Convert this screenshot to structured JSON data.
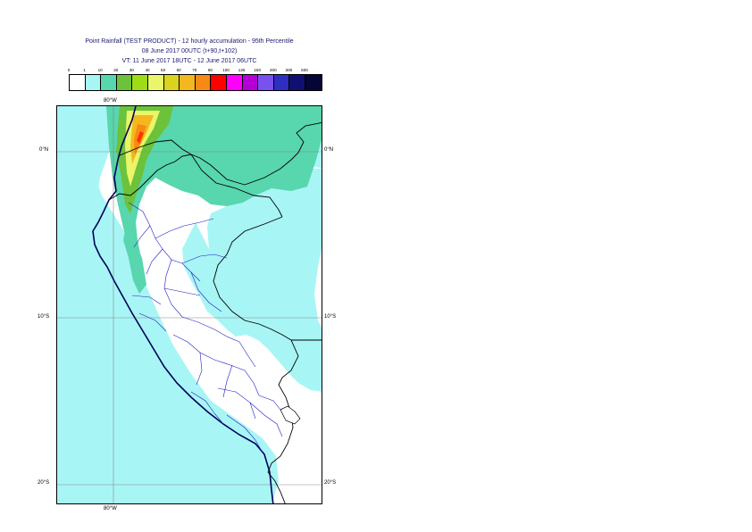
{
  "title": {
    "line1": "Point Rainfall (TEST PRODUCT) - 12 hourly accumulation - 95th Percentile",
    "line2": "08 June 2017 00UTC (t+90,t+102)",
    "line3": "VT: 11 June 2017 18UTC - 12 June 2017 06UTC"
  },
  "legend": {
    "ticks": [
      "0",
      "1",
      "10",
      "20",
      "30",
      "40",
      "50",
      "60",
      "70",
      "80",
      "100",
      "125",
      "150",
      "200",
      "300",
      "500"
    ],
    "colors": [
      "#ffffff",
      "#a8f5f5",
      "#58d6ad",
      "#6cc23a",
      "#9fdc16",
      "#e9f56a",
      "#dcd31e",
      "#f4b81e",
      "#f78a14",
      "#ff0000",
      "#ff00ff",
      "#b400d6",
      "#7a50ee",
      "#2e2ec2",
      "#101071",
      "#050536"
    ]
  },
  "map": {
    "region": "Peru",
    "latitude_labels": [
      "0°N",
      "10°S",
      "20°S"
    ],
    "longitude_labels": [
      "80°W"
    ],
    "colors": {
      "ocean_shade": "#a8f5f5",
      "heavier_shade": "#58d6ad",
      "coast": "#00005a",
      "borders": "#000000",
      "regions": "#1e1ec8",
      "gridlines": "#888888"
    }
  }
}
